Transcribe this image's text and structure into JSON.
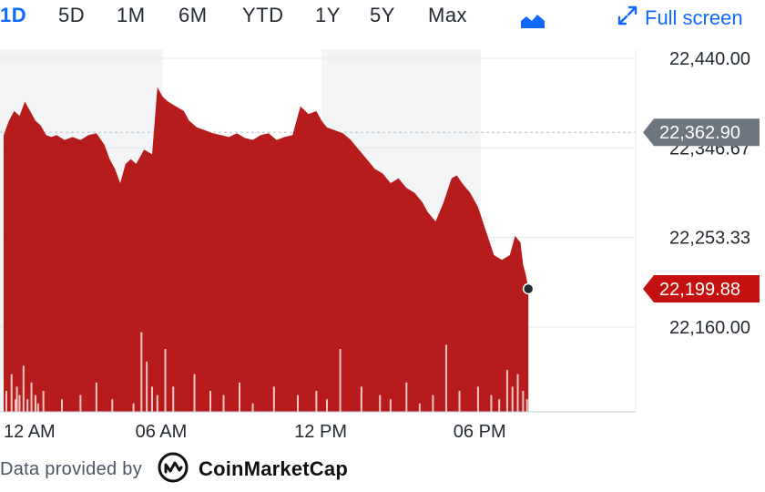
{
  "tabs": [
    "1D",
    "5D",
    "1M",
    "6M",
    "YTD",
    "1Y",
    "5Y",
    "Max"
  ],
  "active_tab": "1D",
  "toolbar": {
    "chart_type_icon": "mountain-chart-icon",
    "fullscreen_label": "Full screen",
    "fullscreen_icon": "expand-arrows-icon"
  },
  "footer": {
    "provided_by": "Data provided by",
    "provider": "CoinMarketCap"
  },
  "colors": {
    "accent": "#0f69ff",
    "area": "#b71c1c",
    "label_grey": "#6e7780",
    "label_red": "#c41010"
  },
  "chart_data": {
    "type": "area",
    "x_ticks": [
      "12 AM",
      "06 AM",
      "12 PM",
      "06 PM"
    ],
    "y_ticks": [
      "22,440.00",
      "22,346.67",
      "22,253.33",
      "22,160.00"
    ],
    "ylim": [
      22160,
      22440
    ],
    "previous_close": {
      "label": "22,362.90",
      "value": 22362.9
    },
    "last_price": {
      "label": "22,199.88",
      "value": 22199.88
    },
    "x_hours": [
      0,
      0.2,
      0.4,
      0.6,
      0.8,
      1,
      1.2,
      1.4,
      1.6,
      1.8,
      2,
      2.3,
      2.6,
      2.9,
      3.2,
      3.5,
      3.8,
      4,
      4.2,
      4.4,
      4.6,
      4.8,
      5,
      5.3,
      5.6,
      5.8,
      6,
      6.2,
      6.5,
      6.8,
      7,
      7.3,
      7.6,
      7.9,
      8.2,
      8.5,
      8.8,
      9.1,
      9.4,
      9.7,
      10,
      10.3,
      10.6,
      10.9,
      11.2,
      11.5,
      11.8,
      12,
      12.2,
      12.5,
      12.8,
      13.1,
      13.4,
      13.7,
      14,
      14.3,
      14.6,
      14.9,
      15.2,
      15.5,
      15.8,
      16,
      16.3,
      16.6,
      16.9,
      17.1,
      17.3,
      17.6,
      17.9,
      18.2,
      18.5,
      18.8,
      19.1,
      19.3,
      19.5,
      19.6,
      19.7,
      19.8
    ],
    "y_values": [
      22360,
      22375,
      22385,
      22380,
      22395,
      22385,
      22375,
      22370,
      22360,
      22358,
      22360,
      22355,
      22358,
      22355,
      22360,
      22362,
      22350,
      22335,
      22325,
      22310,
      22330,
      22335,
      22330,
      22345,
      22340,
      22410,
      22400,
      22395,
      22390,
      22385,
      22375,
      22368,
      22365,
      22362,
      22360,
      22358,
      22362,
      22357,
      22355,
      22360,
      22362,
      22355,
      22358,
      22360,
      22390,
      22382,
      22385,
      22375,
      22368,
      22365,
      22362,
      22355,
      22345,
      22335,
      22325,
      22320,
      22310,
      22315,
      22305,
      22300,
      22290,
      22280,
      22270,
      22290,
      22315,
      22318,
      22310,
      22300,
      22285,
      22260,
      22235,
      22230,
      22235,
      22255,
      22248,
      22225,
      22215,
      22200
    ],
    "volume_hours": [
      0.1,
      0.3,
      0.45,
      0.5,
      0.6,
      0.75,
      0.9,
      1.05,
      1.2,
      1.3,
      1.5,
      2.2,
      2.9,
      3.5,
      4.1,
      4.9,
      5.2,
      5.4,
      5.6,
      5.8,
      6.1,
      6.4,
      7.2,
      7.8,
      8.3,
      8.9,
      9.4,
      10.2,
      11.1,
      11.8,
      12.2,
      12.7,
      13.5,
      14.2,
      14.6,
      15.2,
      15.7,
      16.2,
      16.7,
      17.2,
      17.9,
      18.4,
      18.7,
      19.0,
      19.2,
      19.4,
      19.6,
      19.75
    ],
    "volume_values": [
      0.25,
      0.45,
      0.15,
      0.3,
      0.2,
      0.55,
      0.15,
      0.35,
      0.2,
      0.1,
      0.25,
      0.15,
      0.2,
      0.35,
      0.15,
      0.1,
      0.95,
      0.6,
      0.3,
      0.2,
      0.75,
      0.3,
      0.45,
      0.25,
      0.2,
      0.35,
      0.1,
      0.3,
      0.2,
      0.25,
      0.15,
      0.75,
      0.3,
      0.2,
      0.15,
      0.35,
      0.1,
      0.2,
      0.8,
      0.25,
      0.3,
      0.2,
      0.15,
      0.5,
      0.3,
      0.45,
      0.25,
      0.15
    ]
  }
}
